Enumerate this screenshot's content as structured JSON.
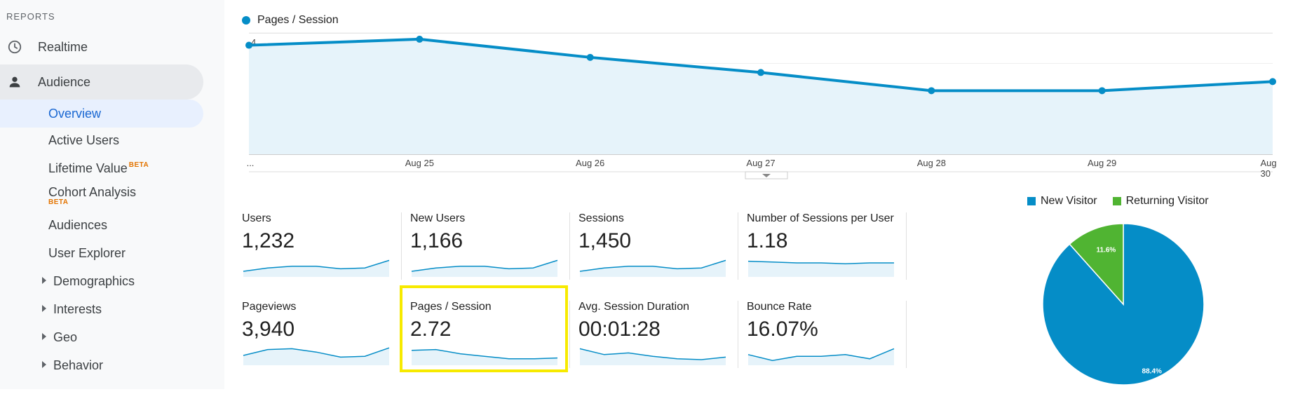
{
  "sidebar": {
    "section_label": "REPORTS",
    "realtime": "Realtime",
    "audience": "Audience",
    "items": [
      {
        "label": "Overview"
      },
      {
        "label": "Active Users"
      },
      {
        "label": "Lifetime Value",
        "badge": "BETA"
      },
      {
        "label": "Cohort Analysis",
        "badge": "BETA"
      },
      {
        "label": "Audiences"
      },
      {
        "label": "User Explorer"
      },
      {
        "label": "Demographics"
      },
      {
        "label": "Interests"
      },
      {
        "label": "Geo"
      },
      {
        "label": "Behavior"
      }
    ]
  },
  "colors": {
    "accent": "#058dc7",
    "fill": "#e6f3fa",
    "green": "#50b432",
    "highlight": "#f7ea00"
  },
  "chart_data": [
    {
      "type": "area",
      "series": [
        {
          "name": "Pages / Session",
          "values": [
            3.6,
            3.8,
            3.2,
            2.7,
            2.1,
            2.1,
            2.4
          ]
        }
      ],
      "x": [
        "...",
        "Aug 25",
        "Aug 26",
        "Aug 27",
        "Aug 28",
        "Aug 29",
        "Aug 30"
      ],
      "yticks": [
        "4",
        "2"
      ],
      "ylim": [
        0,
        4.4
      ]
    },
    {
      "type": "pie",
      "legend": [
        "New Visitor",
        "Returning Visitor"
      ],
      "values": [
        88.4,
        11.6
      ],
      "labels": [
        "88.4%",
        "11.6%"
      ],
      "colors": [
        "#058dc7",
        "#50b432"
      ]
    }
  ],
  "metrics": [
    {
      "label": "Users",
      "value": "1,232",
      "spark": [
        0.25,
        0.45,
        0.55,
        0.55,
        0.4,
        0.45,
        0.9
      ]
    },
    {
      "label": "New Users",
      "value": "1,166",
      "spark": [
        0.25,
        0.45,
        0.55,
        0.55,
        0.4,
        0.45,
        0.9
      ]
    },
    {
      "label": "Sessions",
      "value": "1,450",
      "spark": [
        0.25,
        0.45,
        0.55,
        0.55,
        0.4,
        0.45,
        0.9
      ]
    },
    {
      "label": "Number of Sessions per User",
      "value": "1.18",
      "spark": [
        0.85,
        0.8,
        0.75,
        0.75,
        0.7,
        0.75,
        0.75
      ]
    },
    {
      "label": "Pageviews",
      "value": "3,940",
      "spark": [
        0.5,
        0.85,
        0.9,
        0.7,
        0.4,
        0.45,
        0.95
      ]
    },
    {
      "label": "Pages / Session",
      "value": "2.72",
      "spark": [
        0.8,
        0.85,
        0.6,
        0.45,
        0.3,
        0.3,
        0.35
      ]
    },
    {
      "label": "Avg. Session Duration",
      "value": "00:01:28",
      "spark": [
        0.9,
        0.55,
        0.65,
        0.45,
        0.3,
        0.25,
        0.4
      ]
    },
    {
      "label": "Bounce Rate",
      "value": "16.07%",
      "spark": [
        0.55,
        0.2,
        0.45,
        0.45,
        0.55,
        0.3,
        0.9
      ]
    }
  ]
}
